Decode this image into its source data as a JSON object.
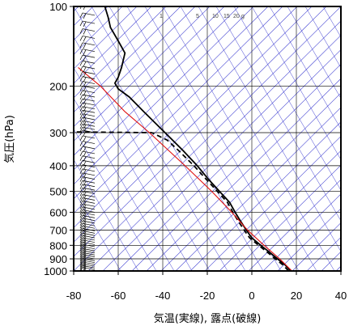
{
  "chart_data": {
    "type": "line",
    "title": "",
    "xlabel": "気温(実線), 露点(破線)",
    "ylabel": "気圧(hPa)",
    "xlim": [
      -80,
      40
    ],
    "ylim": [
      1000,
      100
    ],
    "y_scale": "log",
    "x_ticks": [
      "-80",
      "-60",
      "-40",
      "-20",
      "0",
      "20",
      "40"
    ],
    "y_ticks": [
      "100",
      "200",
      "300",
      "400",
      "500",
      "600",
      "700",
      "800",
      "900",
      "1000"
    ],
    "mixing_ratio_labels": [
      "1",
      "5",
      "10",
      "15",
      "20",
      "g"
    ],
    "grid": true,
    "series": [
      {
        "kind": "temperature",
        "style": "solid",
        "color": "#000000",
        "points": [
          {
            "p": 1000,
            "t": 17.5
          },
          {
            "p": 950,
            "t": 15.0
          },
          {
            "p": 900,
            "t": 11.5
          },
          {
            "p": 850,
            "t": 8.0
          },
          {
            "p": 800,
            "t": 4.0
          },
          {
            "p": 750,
            "t": 0.0
          },
          {
            "p": 700,
            "t": -2.5
          },
          {
            "p": 650,
            "t": -5.0
          },
          {
            "p": 600,
            "t": -7.5
          },
          {
            "p": 550,
            "t": -10.0
          },
          {
            "p": 500,
            "t": -14.5
          },
          {
            "p": 450,
            "t": -19.5
          },
          {
            "p": 400,
            "t": -24.5
          },
          {
            "p": 350,
            "t": -31.0
          },
          {
            "p": 300,
            "t": -39.0
          },
          {
            "p": 250,
            "t": -48.5
          },
          {
            "p": 220,
            "t": -55.0
          },
          {
            "p": 205,
            "t": -60.0
          },
          {
            "p": 195,
            "t": -61.5
          },
          {
            "p": 185,
            "t": -60.0
          },
          {
            "p": 170,
            "t": -58.5
          },
          {
            "p": 150,
            "t": -57.0
          },
          {
            "p": 135,
            "t": -60.0
          },
          {
            "p": 120,
            "t": -63.5
          },
          {
            "p": 110,
            "t": -64.5
          },
          {
            "p": 100,
            "t": -66.0
          }
        ]
      },
      {
        "kind": "dewpoint",
        "style": "dashed",
        "color": "#000000",
        "points": [
          {
            "p": 1000,
            "t": 16.5
          },
          {
            "p": 950,
            "t": 14.0
          },
          {
            "p": 900,
            "t": 10.5
          },
          {
            "p": 850,
            "t": 7.0
          },
          {
            "p": 800,
            "t": 3.0
          },
          {
            "p": 750,
            "t": -1.0
          },
          {
            "p": 700,
            "t": -3.5
          },
          {
            "p": 650,
            "t": -6.0
          },
          {
            "p": 600,
            "t": -8.5
          },
          {
            "p": 550,
            "t": -11.0
          },
          {
            "p": 500,
            "t": -15.5
          },
          {
            "p": 450,
            "t": -20.5
          },
          {
            "p": 400,
            "t": -26.0
          },
          {
            "p": 350,
            "t": -33.0
          },
          {
            "p": 320,
            "t": -38.0
          },
          {
            "p": 300,
            "t": -45.0
          },
          {
            "p": 298,
            "t": -80.0
          }
        ]
      },
      {
        "kind": "parcel",
        "style": "solid",
        "color": "#e01010",
        "points": [
          {
            "p": 1000,
            "t": 18.0
          },
          {
            "p": 900,
            "t": 12.5
          },
          {
            "p": 800,
            "t": 5.5
          },
          {
            "p": 700,
            "t": -2.0
          },
          {
            "p": 600,
            "t": -9.0
          },
          {
            "p": 500,
            "t": -18.0
          },
          {
            "p": 400,
            "t": -30.0
          },
          {
            "p": 300,
            "t": -46.0
          },
          {
            "p": 250,
            "t": -57.0
          },
          {
            "p": 200,
            "t": -68.0
          },
          {
            "p": 170,
            "t": -78.0
          }
        ]
      }
    ]
  }
}
